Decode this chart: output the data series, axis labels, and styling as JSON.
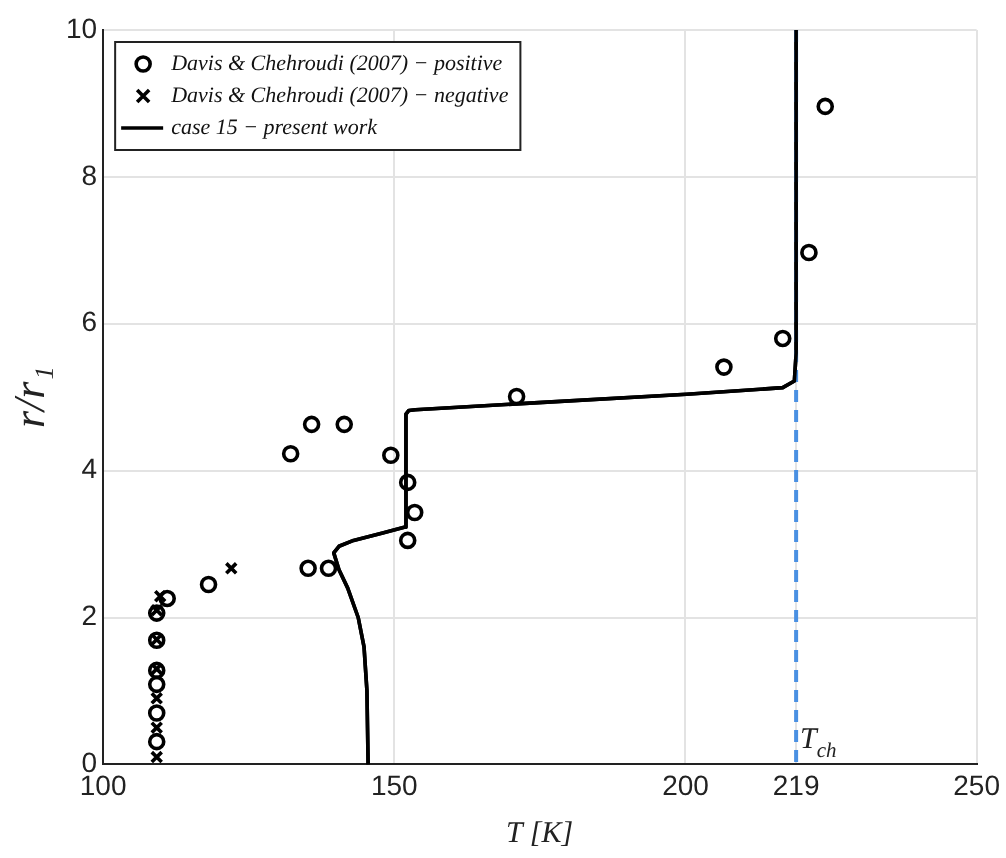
{
  "chart_data": {
    "type": "scatter",
    "xlabel": "T [K]",
    "ylabel": "r/r₁",
    "xlim": [
      100,
      250
    ],
    "xticks": [
      100,
      150,
      200,
      219,
      250
    ],
    "ylim": [
      0,
      10
    ],
    "yticks": [
      0,
      2,
      4,
      6,
      8,
      10
    ],
    "grid": true,
    "legend": "top left",
    "series": [
      {
        "name": "Davis & Chehroudi (2007) − positive",
        "marker": "circle",
        "color": "#000000",
        "x": [
          109.2,
          109.2,
          109.2,
          109.2,
          109.2,
          109.2,
          111,
          118.1,
          135.2,
          138.7,
          132.2,
          135.8,
          141.4,
          149.4,
          152.3,
          153.5,
          152.3,
          171,
          206.6,
          216.7,
          221.2,
          224
        ],
        "values": [
          0.31,
          0.7,
          1.09,
          1.28,
          1.69,
          2.06,
          2.26,
          2.45,
          2.67,
          2.67,
          4.23,
          4.63,
          4.63,
          4.21,
          3.84,
          3.43,
          3.05,
          5.01,
          5.41,
          5.8,
          6.97,
          8.96
        ]
      },
      {
        "name": "Davis & Chehroudi (2007) − negative",
        "marker": "cross",
        "color": "#000000",
        "x": [
          109.2,
          109.2,
          109.2,
          109.2,
          109.2,
          109.2,
          109.8,
          122
        ],
        "values": [
          0.1,
          0.5,
          0.9,
          1.3,
          1.7,
          2.1,
          2.29,
          2.67
        ]
      },
      {
        "name": "case 15 − present work",
        "type": "line",
        "marker": "none",
        "color": "#000000",
        "x": [
          145.5,
          145.3,
          144.8,
          143.8,
          142,
          140.5,
          139.6,
          140.5,
          143,
          148,
          151.7,
          152,
          152.5,
          153.6,
          175.5,
          200.2,
          216.7,
          218.7,
          219,
          219
        ],
        "values": [
          0,
          1,
          1.6,
          2,
          2.4,
          2.65,
          2.88,
          2.97,
          3.05,
          3.15,
          3.23,
          4.77,
          4.82,
          4.83,
          4.93,
          5.04,
          5.13,
          5.22,
          5.6,
          10
        ]
      }
    ],
    "ref_lines": [
      {
        "axis": "x",
        "value": 219,
        "label": "T$_{ch}$",
        "color": "#4a90e2",
        "line_style": "dashed"
      }
    ]
  }
}
